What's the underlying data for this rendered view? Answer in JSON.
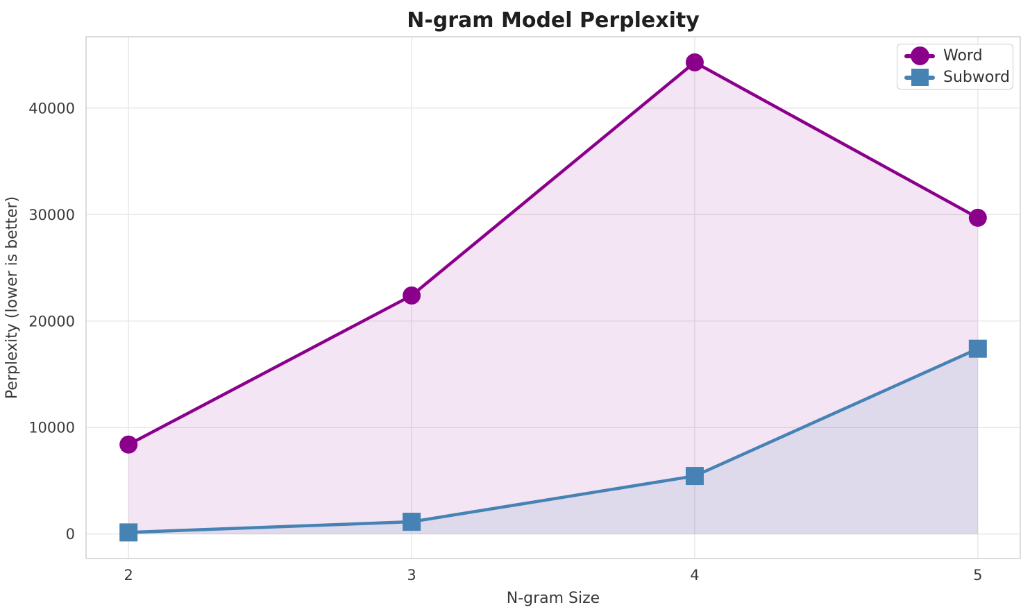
{
  "chart_data": {
    "type": "line",
    "title": "N-gram Model Perplexity",
    "xlabel": "N-gram Size",
    "ylabel": "Perplexity (lower is better)",
    "x": [
      2,
      3,
      4,
      5
    ],
    "series": [
      {
        "name": "Word",
        "marker": "circle",
        "color": "#8B008B",
        "fill_alpha": 0.1,
        "values": [
          8400,
          22400,
          44300,
          29700
        ]
      },
      {
        "name": "Subword",
        "marker": "square",
        "color": "#4682B4",
        "fill_alpha": 0.12,
        "values": [
          150,
          1150,
          5450,
          17400
        ]
      }
    ],
    "xticks": [
      2,
      3,
      4,
      5
    ],
    "yticks": [
      0,
      10000,
      20000,
      30000,
      40000
    ],
    "xlim": [
      1.85,
      5.15
    ],
    "ylim": [
      -2300,
      46700
    ],
    "grid": true,
    "legend_position": "upper right",
    "area_fill_baseline": 0,
    "colors": {
      "grid": "#e5e5e5",
      "spine": "#cccccc",
      "title_text": "#1f1f1f",
      "tick_text": "#3a3a3a"
    }
  }
}
